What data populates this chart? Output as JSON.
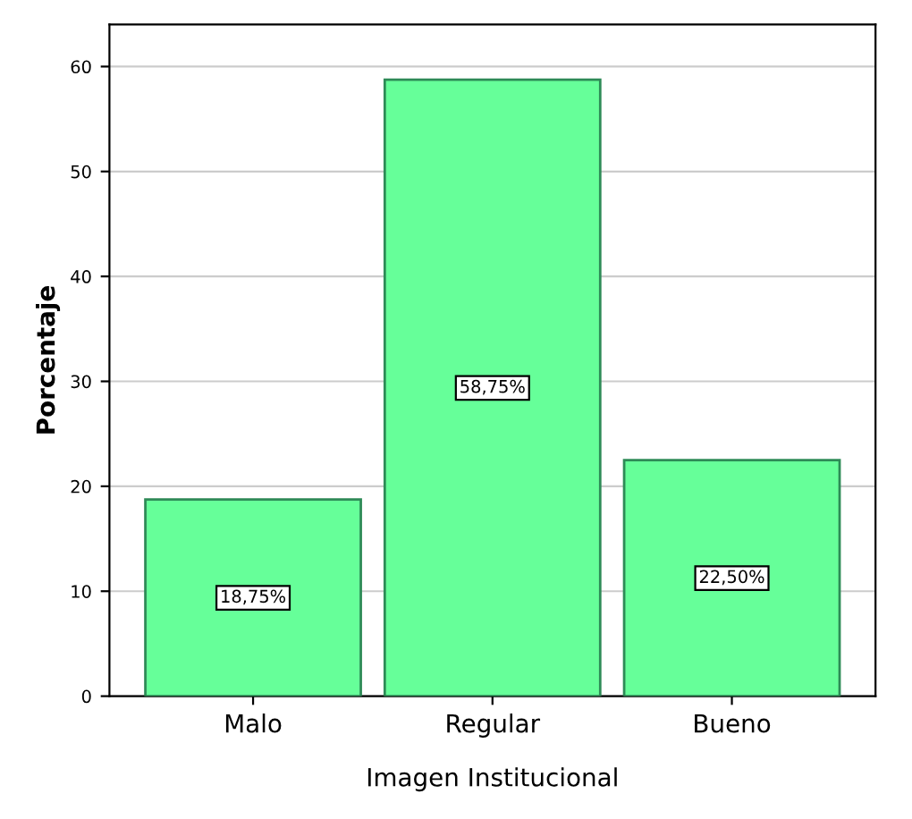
{
  "chart_data": {
    "type": "bar",
    "xlabel": "Imagen Institucional",
    "ylabel": "Porcentaje",
    "categories": [
      "Malo",
      "Regular",
      "Bueno"
    ],
    "values": [
      18.75,
      58.75,
      22.5
    ],
    "value_labels": [
      "18,75%",
      "58,75%",
      "22,50%"
    ],
    "color": "#66ff99",
    "ylim": [
      0,
      64
    ],
    "yticks": [
      0,
      10,
      20,
      30,
      40,
      50,
      60
    ],
    "grid": "y"
  }
}
